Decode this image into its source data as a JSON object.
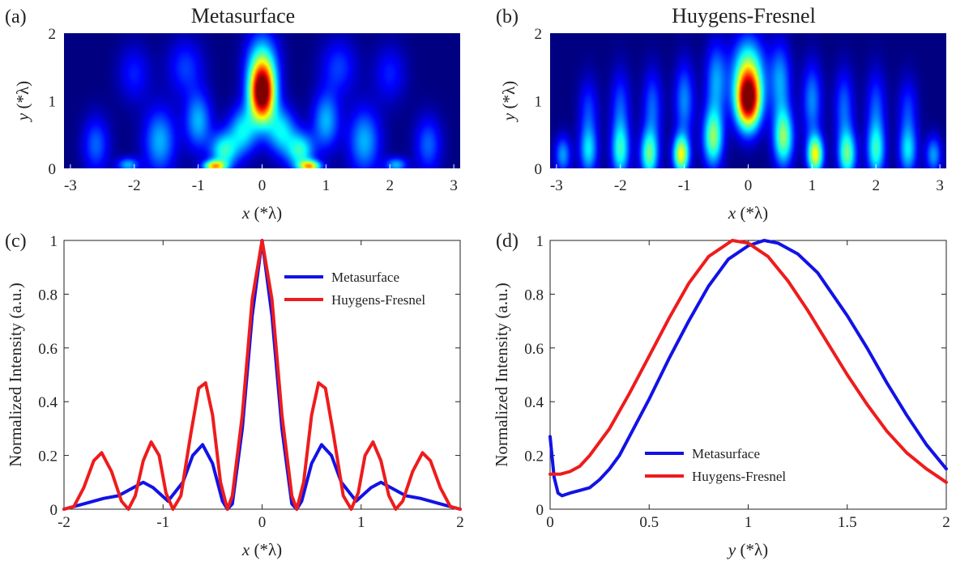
{
  "figure": {
    "panels": [
      {
        "label": "(a)",
        "title": "Metasurface"
      },
      {
        "label": "(b)",
        "title": "Huygens-Fresnel"
      },
      {
        "label": "(c)",
        "title": ""
      },
      {
        "label": "(d)",
        "title": ""
      }
    ]
  },
  "colors": {
    "metasurface": "#1212e6",
    "huygens": "#ee1c1c",
    "map_low": "#00008f"
  },
  "chart_data": [
    {
      "type": "heatmap",
      "panel": "(a)",
      "title": "Metasurface",
      "xlabel": "x (*λ)",
      "ylabel": "y (*λ)",
      "xlim": [
        -3.1,
        3.1
      ],
      "ylim": [
        0,
        2
      ],
      "xticks": [
        "-3",
        "-2",
        "-1",
        "0",
        "1",
        "2",
        "3"
      ],
      "yticks": [
        "0",
        "1",
        "2"
      ],
      "colormap": "jet",
      "hotspots": [
        {
          "x": 0,
          "y": 1.1,
          "sx": 0.14,
          "sy": 0.3,
          "v": 1.0
        },
        {
          "x": 0,
          "y": 1.55,
          "sx": 0.18,
          "sy": 0.35,
          "v": 0.35
        },
        {
          "x": -0.3,
          "y": 0.55,
          "sx": 0.16,
          "sy": 0.25,
          "v": 0.35
        },
        {
          "x": 0.3,
          "y": 0.55,
          "sx": 0.16,
          "sy": 0.25,
          "v": 0.35
        },
        {
          "x": -0.6,
          "y": 0.25,
          "sx": 0.15,
          "sy": 0.2,
          "v": 0.4
        },
        {
          "x": 0.6,
          "y": 0.25,
          "sx": 0.15,
          "sy": 0.2,
          "v": 0.4
        },
        {
          "x": -0.75,
          "y": 0.03,
          "sx": 0.12,
          "sy": 0.06,
          "v": 0.6
        },
        {
          "x": 0.75,
          "y": 0.03,
          "sx": 0.12,
          "sy": 0.06,
          "v": 0.6
        },
        {
          "x": -1.0,
          "y": 0.7,
          "sx": 0.15,
          "sy": 0.3,
          "v": 0.3
        },
        {
          "x": 1.0,
          "y": 0.7,
          "sx": 0.15,
          "sy": 0.3,
          "v": 0.3
        },
        {
          "x": -1.6,
          "y": 0.4,
          "sx": 0.18,
          "sy": 0.35,
          "v": 0.3
        },
        {
          "x": 1.6,
          "y": 0.4,
          "sx": 0.18,
          "sy": 0.35,
          "v": 0.3
        },
        {
          "x": -2.6,
          "y": 0.35,
          "sx": 0.15,
          "sy": 0.3,
          "v": 0.22
        },
        {
          "x": 2.6,
          "y": 0.35,
          "sx": 0.15,
          "sy": 0.3,
          "v": 0.22
        },
        {
          "x": -2.1,
          "y": 0.05,
          "sx": 0.12,
          "sy": 0.08,
          "v": 0.3
        },
        {
          "x": 2.1,
          "y": 0.05,
          "sx": 0.12,
          "sy": 0.08,
          "v": 0.3
        },
        {
          "x": -1.2,
          "y": 1.5,
          "sx": 0.2,
          "sy": 0.3,
          "v": 0.18
        },
        {
          "x": 1.2,
          "y": 1.5,
          "sx": 0.2,
          "sy": 0.3,
          "v": 0.18
        },
        {
          "x": -2.0,
          "y": 1.4,
          "sx": 0.18,
          "sy": 0.3,
          "v": 0.15
        },
        {
          "x": 2.0,
          "y": 1.4,
          "sx": 0.18,
          "sy": 0.3,
          "v": 0.15
        }
      ]
    },
    {
      "type": "heatmap",
      "panel": "(b)",
      "title": "Huygens-Fresnel",
      "xlabel": "x (*λ)",
      "ylabel": "y (*λ)",
      "xlim": [
        -3.1,
        3.1
      ],
      "ylim": [
        0,
        2
      ],
      "xticks": [
        "-3",
        "-2",
        "-1",
        "0",
        "1",
        "2",
        "3"
      ],
      "yticks": [
        "0",
        "1",
        "2"
      ],
      "colormap": "jet",
      "hotspots": [
        {
          "x": 0,
          "y": 1.0,
          "sx": 0.14,
          "sy": 0.3,
          "v": 1.0
        },
        {
          "x": 0,
          "y": 1.5,
          "sx": 0.18,
          "sy": 0.35,
          "v": 0.4
        },
        {
          "x": -0.55,
          "y": 0.45,
          "sx": 0.11,
          "sy": 0.3,
          "v": 0.5
        },
        {
          "x": 0.55,
          "y": 0.45,
          "sx": 0.11,
          "sy": 0.3,
          "v": 0.5
        },
        {
          "x": -1.05,
          "y": 0.2,
          "sx": 0.09,
          "sy": 0.2,
          "v": 0.6
        },
        {
          "x": 1.05,
          "y": 0.2,
          "sx": 0.09,
          "sy": 0.2,
          "v": 0.6
        },
        {
          "x": -1.55,
          "y": 0.2,
          "sx": 0.1,
          "sy": 0.25,
          "v": 0.45
        },
        {
          "x": 1.55,
          "y": 0.2,
          "sx": 0.1,
          "sy": 0.25,
          "v": 0.45
        },
        {
          "x": -2.0,
          "y": 0.25,
          "sx": 0.1,
          "sy": 0.28,
          "v": 0.38
        },
        {
          "x": 2.0,
          "y": 0.25,
          "sx": 0.1,
          "sy": 0.28,
          "v": 0.38
        },
        {
          "x": -2.5,
          "y": 0.25,
          "sx": 0.1,
          "sy": 0.25,
          "v": 0.32
        },
        {
          "x": 2.5,
          "y": 0.25,
          "sx": 0.1,
          "sy": 0.25,
          "v": 0.32
        },
        {
          "x": -2.9,
          "y": 0.2,
          "sx": 0.09,
          "sy": 0.2,
          "v": 0.28
        },
        {
          "x": 2.9,
          "y": 0.2,
          "sx": 0.09,
          "sy": 0.2,
          "v": 0.28
        },
        {
          "x": -0.5,
          "y": 1.3,
          "sx": 0.12,
          "sy": 0.4,
          "v": 0.28
        },
        {
          "x": 0.5,
          "y": 1.3,
          "sx": 0.12,
          "sy": 0.4,
          "v": 0.28
        },
        {
          "x": -1.0,
          "y": 1.0,
          "sx": 0.11,
          "sy": 0.4,
          "v": 0.26
        },
        {
          "x": 1.0,
          "y": 1.0,
          "sx": 0.11,
          "sy": 0.4,
          "v": 0.26
        },
        {
          "x": -1.5,
          "y": 0.9,
          "sx": 0.11,
          "sy": 0.4,
          "v": 0.22
        },
        {
          "x": 1.5,
          "y": 0.9,
          "sx": 0.11,
          "sy": 0.4,
          "v": 0.22
        },
        {
          "x": -2.0,
          "y": 0.9,
          "sx": 0.11,
          "sy": 0.4,
          "v": 0.2
        },
        {
          "x": 2.0,
          "y": 0.9,
          "sx": 0.11,
          "sy": 0.4,
          "v": 0.2
        },
        {
          "x": -2.5,
          "y": 0.85,
          "sx": 0.11,
          "sy": 0.35,
          "v": 0.18
        },
        {
          "x": 2.5,
          "y": 0.85,
          "sx": 0.11,
          "sy": 0.35,
          "v": 0.18
        }
      ]
    },
    {
      "type": "line",
      "panel": "(c)",
      "xlabel": "x  (*λ)",
      "ylabel": "Normalized Intensity (a.u.)",
      "xlim": [
        -2,
        2
      ],
      "ylim": [
        0,
        1
      ],
      "xticks": [
        "-2",
        "-1",
        "0",
        "1",
        "2"
      ],
      "yticks": [
        "0",
        "0.2",
        "0.4",
        "0.6",
        "0.8",
        "1"
      ],
      "legend": "top-right",
      "series": [
        {
          "name": "Metasurface",
          "color": "#1212e6",
          "x": [
            -2.0,
            -1.8,
            -1.6,
            -1.45,
            -1.3,
            -1.2,
            -1.1,
            -0.95,
            -0.8,
            -0.7,
            -0.6,
            -0.5,
            -0.4,
            -0.35,
            -0.3,
            -0.2,
            -0.1,
            0.0,
            0.1,
            0.2,
            0.3,
            0.35,
            0.4,
            0.5,
            0.6,
            0.7,
            0.8,
            0.95,
            1.1,
            1.2,
            1.3,
            1.45,
            1.6,
            1.8,
            2.0
          ],
          "y": [
            0.0,
            0.02,
            0.04,
            0.05,
            0.08,
            0.1,
            0.08,
            0.03,
            0.1,
            0.2,
            0.24,
            0.17,
            0.03,
            0.0,
            0.02,
            0.3,
            0.72,
            1.0,
            0.72,
            0.3,
            0.02,
            0.0,
            0.03,
            0.17,
            0.24,
            0.2,
            0.1,
            0.03,
            0.08,
            0.1,
            0.08,
            0.05,
            0.04,
            0.02,
            0.0
          ]
        },
        {
          "name": "Huygens-Fresnel",
          "color": "#ee1c1c",
          "x": [
            -2.0,
            -1.9,
            -1.8,
            -1.7,
            -1.62,
            -1.52,
            -1.42,
            -1.35,
            -1.28,
            -1.2,
            -1.12,
            -1.04,
            -0.97,
            -0.9,
            -0.82,
            -0.72,
            -0.64,
            -0.57,
            -0.5,
            -0.42,
            -0.35,
            -0.3,
            -0.2,
            -0.1,
            0.0,
            0.1,
            0.2,
            0.3,
            0.35,
            0.42,
            0.5,
            0.57,
            0.64,
            0.72,
            0.82,
            0.9,
            0.97,
            1.04,
            1.12,
            1.2,
            1.28,
            1.35,
            1.42,
            1.52,
            1.62,
            1.7,
            1.8,
            1.9,
            2.0
          ],
          "y": [
            0.0,
            0.01,
            0.08,
            0.18,
            0.21,
            0.14,
            0.03,
            0.0,
            0.05,
            0.18,
            0.25,
            0.2,
            0.06,
            0.0,
            0.05,
            0.28,
            0.45,
            0.47,
            0.35,
            0.1,
            0.0,
            0.05,
            0.35,
            0.78,
            1.0,
            0.78,
            0.35,
            0.05,
            0.0,
            0.1,
            0.35,
            0.47,
            0.45,
            0.28,
            0.05,
            0.0,
            0.06,
            0.2,
            0.25,
            0.18,
            0.05,
            0.0,
            0.03,
            0.14,
            0.21,
            0.18,
            0.08,
            0.01,
            0.0
          ]
        }
      ]
    },
    {
      "type": "line",
      "panel": "(d)",
      "xlabel": "y (*λ)",
      "ylabel": "Normalized Intensity (a.u.)",
      "xlim": [
        0,
        2
      ],
      "ylim": [
        0,
        1
      ],
      "xticks": [
        "0",
        "0.5",
        "1",
        "1.5",
        "2"
      ],
      "yticks": [
        "0",
        "0.2",
        "0.4",
        "0.6",
        "0.8",
        "1"
      ],
      "legend": "bottom-center",
      "series": [
        {
          "name": "Metasurface",
          "color": "#1212e6",
          "x": [
            0.0,
            0.02,
            0.04,
            0.06,
            0.1,
            0.15,
            0.2,
            0.25,
            0.3,
            0.35,
            0.4,
            0.5,
            0.6,
            0.7,
            0.8,
            0.9,
            1.0,
            1.08,
            1.15,
            1.25,
            1.35,
            1.5,
            1.6,
            1.7,
            1.8,
            1.9,
            2.0
          ],
          "y": [
            0.27,
            0.12,
            0.06,
            0.05,
            0.06,
            0.07,
            0.08,
            0.11,
            0.15,
            0.2,
            0.27,
            0.41,
            0.56,
            0.7,
            0.83,
            0.93,
            0.98,
            1.0,
            0.99,
            0.95,
            0.88,
            0.72,
            0.6,
            0.47,
            0.35,
            0.24,
            0.15
          ]
        },
        {
          "name": "Huygens-Fresnel",
          "color": "#ee1c1c",
          "x": [
            0.0,
            0.05,
            0.1,
            0.15,
            0.2,
            0.3,
            0.4,
            0.5,
            0.6,
            0.7,
            0.8,
            0.92,
            1.0,
            1.1,
            1.2,
            1.3,
            1.4,
            1.5,
            1.6,
            1.7,
            1.8,
            1.9,
            2.0
          ],
          "y": [
            0.13,
            0.13,
            0.14,
            0.16,
            0.2,
            0.3,
            0.43,
            0.57,
            0.71,
            0.84,
            0.94,
            1.0,
            0.99,
            0.94,
            0.85,
            0.74,
            0.62,
            0.5,
            0.39,
            0.29,
            0.21,
            0.15,
            0.1
          ]
        }
      ]
    }
  ]
}
